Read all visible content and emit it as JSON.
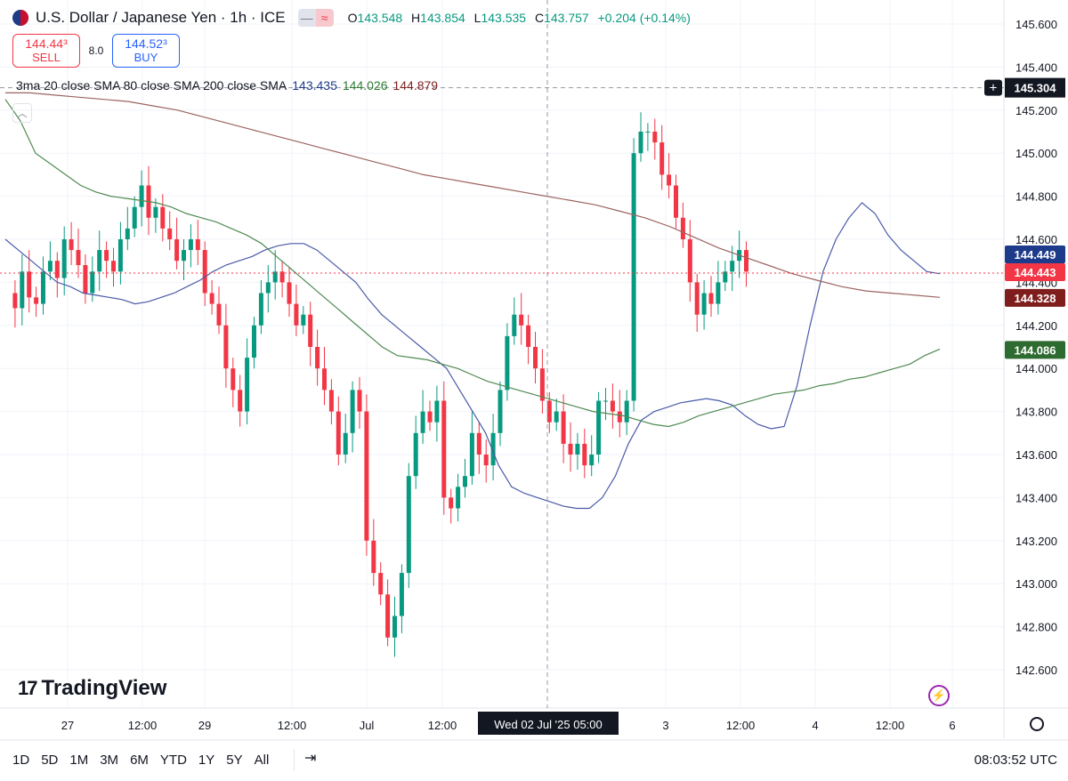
{
  "header": {
    "title": "U.S. Dollar / Japanese Yen · 1h · ICE",
    "ohlc": {
      "open_label": "O",
      "open": "143.548",
      "high_label": "H",
      "high": "143.854",
      "low_label": "L",
      "low": "143.535",
      "close_label": "C",
      "close": "143.757",
      "change": "+0.204 (+0.14%)"
    },
    "flag_icon": "us-japan-flag-icon",
    "pill_left": "—",
    "pill_right": "≈"
  },
  "trade": {
    "sell_price": "144.44³",
    "sell_label": "SELL",
    "spread": "8.0",
    "buy_price": "144.52³",
    "buy_label": "BUY"
  },
  "indicator": {
    "label": "3ma 20 close SMA 80 close SMA 200 close SMA",
    "sma20": "143.435",
    "sma80": "144.026",
    "sma200": "144.879"
  },
  "colors": {
    "up": "#089981",
    "down": "#f23645",
    "sma20": "#4a5aa8",
    "sma80": "#4f8a52",
    "sma200": "#9c6460",
    "crosshair_label_bg": "#131722",
    "logo_bolt": "#9c27b0"
  },
  "chart_data": {
    "type": "candlestick",
    "symbol": "USDJPY",
    "interval": "1h",
    "yticks": [
      "142.600",
      "142.800",
      "143.000",
      "143.200",
      "143.400",
      "143.600",
      "143.800",
      "144.000",
      "144.200",
      "144.400",
      "144.600",
      "144.800",
      "145.000",
      "145.200",
      "145.400",
      "145.600"
    ],
    "xticks": [
      "27",
      "12:00",
      "29",
      "12:00",
      "Jul",
      "12:00",
      "3",
      "12:00",
      "4",
      "12:00",
      "6"
    ],
    "ylim": [
      142.55,
      145.65
    ],
    "crosshair": {
      "price": "145.304",
      "time": "Wed 02 Jul '25   05:00"
    },
    "price_labels": [
      {
        "name": "sma20",
        "value": "144.449",
        "color": "#1e3a8a"
      },
      {
        "name": "last",
        "value": "144.443",
        "color": "#f23645"
      },
      {
        "name": "sma200",
        "value": "144.328",
        "color": "#7f1d1d"
      },
      {
        "name": "sma80",
        "value": "144.086",
        "color": "#2e6b30"
      }
    ],
    "series": [
      {
        "name": "SMA 20",
        "values": [
          144.6,
          144.55,
          144.5,
          144.45,
          144.4,
          144.38,
          144.35,
          144.34,
          144.33,
          144.32,
          144.3,
          144.31,
          144.33,
          144.35,
          144.38,
          144.41,
          144.45,
          144.48,
          144.5,
          144.52,
          144.55,
          144.57,
          144.58,
          144.58,
          144.55,
          144.5,
          144.45,
          144.4,
          144.32,
          144.25,
          144.2,
          144.15,
          144.1,
          144.05,
          144.0,
          143.9,
          143.8,
          143.7,
          143.55,
          143.45,
          143.42,
          143.4,
          143.38,
          143.36,
          143.35,
          143.35,
          143.4,
          143.5,
          143.65,
          143.76,
          143.8,
          143.82,
          143.84,
          143.85,
          143.86,
          143.85,
          143.83,
          143.78,
          143.74,
          143.72,
          143.73,
          143.92,
          144.2,
          144.45,
          144.6,
          144.7,
          144.77,
          144.72,
          144.62,
          144.55,
          144.5,
          144.45,
          144.44
        ]
      },
      {
        "name": "SMA 80",
        "values": [
          145.25,
          145.15,
          145.0,
          144.95,
          144.9,
          144.85,
          144.82,
          144.8,
          144.79,
          144.78,
          144.77,
          144.75,
          144.72,
          144.7,
          144.68,
          144.65,
          144.62,
          144.58,
          144.52,
          144.46,
          144.4,
          144.34,
          144.28,
          144.22,
          144.16,
          144.1,
          144.06,
          144.05,
          144.04,
          144.02,
          144.0,
          143.97,
          143.94,
          143.92,
          143.9,
          143.88,
          143.86,
          143.84,
          143.82,
          143.8,
          143.79,
          143.78,
          143.76,
          143.74,
          143.73,
          143.75,
          143.78,
          143.8,
          143.82,
          143.84,
          143.86,
          143.88,
          143.89,
          143.9,
          143.92,
          143.93,
          143.95,
          143.96,
          143.98,
          144.0,
          144.02,
          144.06,
          144.09
        ]
      },
      {
        "name": "SMA 200",
        "values": [
          145.28,
          145.28,
          145.27,
          145.26,
          145.25,
          145.24,
          145.22,
          145.2,
          145.17,
          145.14,
          145.11,
          145.08,
          145.05,
          145.02,
          144.99,
          144.96,
          144.93,
          144.9,
          144.88,
          144.86,
          144.84,
          144.82,
          144.8,
          144.78,
          144.76,
          144.73,
          144.7,
          144.66,
          144.61,
          144.56,
          144.52,
          144.48,
          144.44,
          144.41,
          144.38,
          144.36,
          144.35,
          144.34,
          144.33
        ]
      }
    ]
  },
  "ranges": [
    "1D",
    "5D",
    "1M",
    "3M",
    "6M",
    "YTD",
    "1Y",
    "5Y",
    "All"
  ],
  "footer": {
    "clock": "08:03:52 UTC",
    "calendar_icon": "calendar-range-icon"
  },
  "logo": {
    "text": "TradingView",
    "mark": "17"
  },
  "misc": {
    "collapse_icon": "chevron-up-icon",
    "settings_icon": "gear-icon",
    "bolt_icon": "lightning-icon"
  }
}
